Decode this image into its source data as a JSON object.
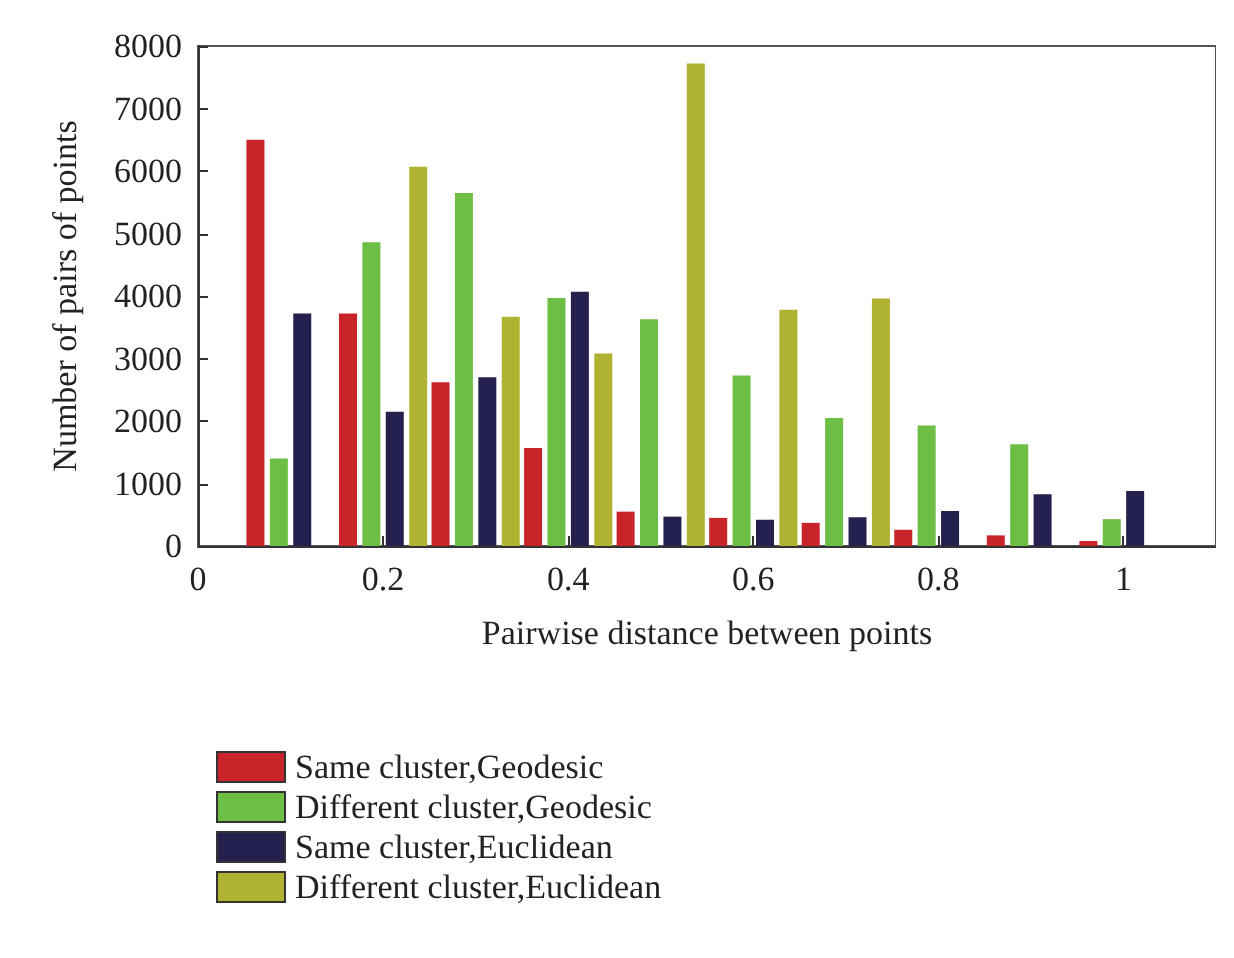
{
  "chart_data": {
    "type": "bar",
    "xlabel": "Pairwise distance between points",
    "ylabel": "Number of pairs of points",
    "x": [
      0.1,
      0.2,
      0.3,
      0.4,
      0.5,
      0.6,
      0.7,
      0.8,
      0.9,
      1.0
    ],
    "series": [
      {
        "name": "Same cluster,Geodesic",
        "color": "#c8242a",
        "values": [
          6500,
          3720,
          2620,
          1570,
          550,
          450,
          370,
          260,
          170,
          80
        ]
      },
      {
        "name": "Different cluster,Geodesic",
        "color": "#6cbf44",
        "values": [
          1400,
          4860,
          5650,
          3970,
          3630,
          2730,
          2050,
          1930,
          1630,
          430
        ]
      },
      {
        "name": "Same cluster,Euclidean",
        "color": "#25214e",
        "values": [
          3720,
          2150,
          2700,
          4070,
          470,
          420,
          460,
          560,
          830,
          880
        ]
      },
      {
        "name": "Different cluster,Euclidean",
        "color": "#b0b232",
        "values": [
          0,
          6070,
          3670,
          3080,
          7720,
          3780,
          3960,
          0,
          0,
          0
        ]
      }
    ],
    "xlim": [
      0,
      1.1
    ],
    "xticks": [
      0,
      0.2,
      0.4,
      0.6,
      0.8,
      1
    ],
    "ylim": [
      0,
      8000
    ],
    "yticks": [
      0,
      1000,
      2000,
      3000,
      4000,
      5000,
      6000,
      7000,
      8000
    ],
    "grid": false,
    "legend": "bottom"
  }
}
